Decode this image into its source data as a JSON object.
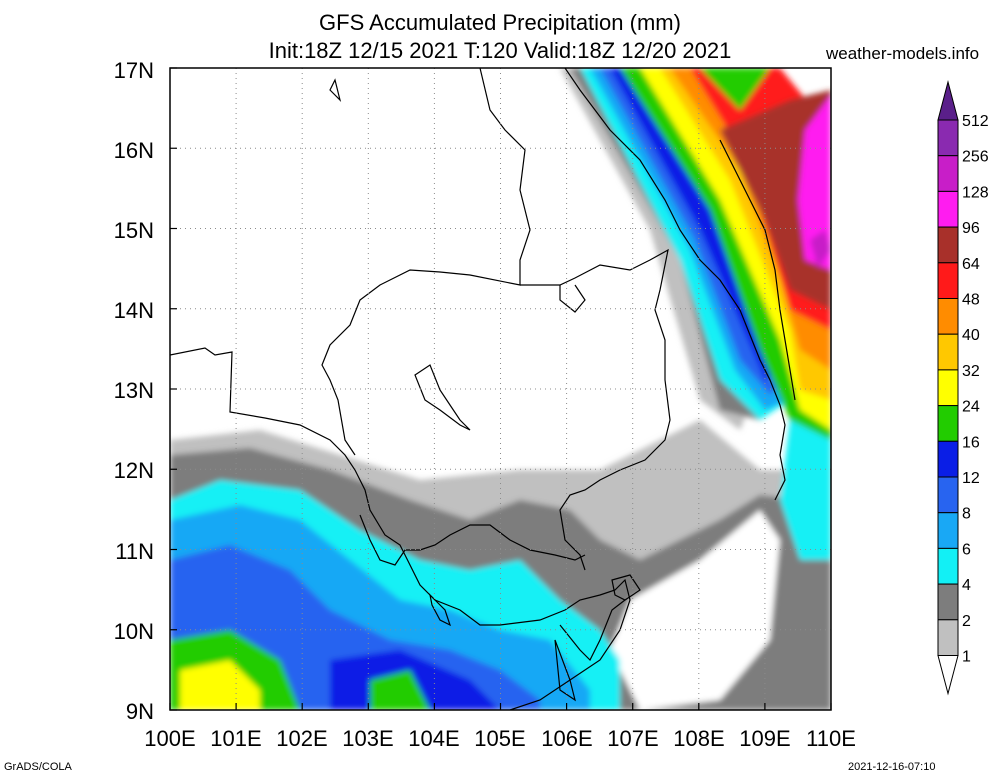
{
  "title_line1": "GFS Accumulated Precipitation (mm)",
  "title_line2": "Init:18Z 12/15 2021 T:120 Valid:18Z 12/20 2021",
  "source": "weather-models.info",
  "footer_left": "GrADS/COLA",
  "footer_right": "2021-12-16-07:10",
  "map": {
    "lat_labels": [
      "17N",
      "16N",
      "15N",
      "14N",
      "13N",
      "12N",
      "11N",
      "10N",
      "9N"
    ],
    "lon_labels": [
      "100E",
      "101E",
      "102E",
      "103E",
      "104E",
      "105E",
      "106E",
      "107E",
      "108E",
      "109E",
      "110E"
    ],
    "extent": {
      "lon_min": 100,
      "lon_max": 110,
      "lat_min": 9,
      "lat_max": 17
    }
  },
  "legend": {
    "levels": [
      {
        "label": "512",
        "color": "#5a1f8a"
      },
      {
        "label": "256",
        "color": "#8a2ab0"
      },
      {
        "label": "128",
        "color": "#c81ec8"
      },
      {
        "label": "96",
        "color": "#ff1cf0"
      },
      {
        "label": "64",
        "color": "#a8302a"
      },
      {
        "label": "48",
        "color": "#ff1a1a"
      },
      {
        "label": "40",
        "color": "#ff8c00"
      },
      {
        "label": "32",
        "color": "#ffc800"
      },
      {
        "label": "24",
        "color": "#ffff00"
      },
      {
        "label": "16",
        "color": "#22cc00"
      },
      {
        "label": "12",
        "color": "#0a1ee6"
      },
      {
        "label": "8",
        "color": "#2864f0"
      },
      {
        "label": "6",
        "color": "#19a8f5"
      },
      {
        "label": "4",
        "color": "#12f0f5"
      },
      {
        "label": "2",
        "color": "#7d7d7d"
      },
      {
        "label": "1",
        "color": "#c0c0c0"
      }
    ],
    "under_color": "#ffffff"
  }
}
